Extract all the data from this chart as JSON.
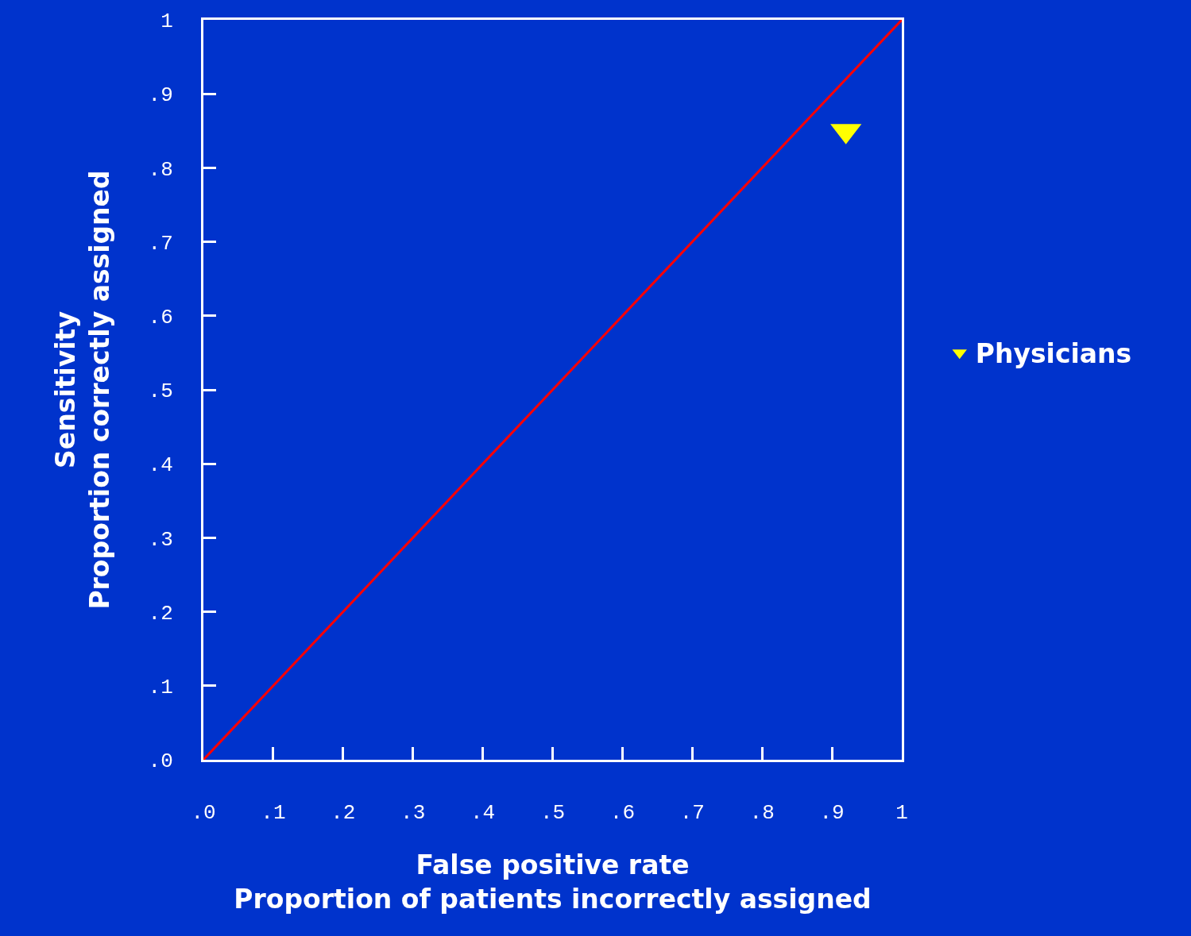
{
  "chart_data": {
    "type": "scatter",
    "xlabel": "False positive rate\nProportion of patients incorrectly assigned",
    "ylabel": "Sensitivity\nProportion correctly assigned",
    "series": [
      {
        "type": "line",
        "color": "#ff0000",
        "x": [
          0,
          1
        ],
        "values": [
          0,
          1
        ],
        "marker": "none"
      },
      {
        "name": "Physicians",
        "color": "#ffff00",
        "x": [
          0.92
        ],
        "values": [
          0.85
        ],
        "marker": "triangle"
      }
    ],
    "xlim": [
      0,
      1
    ],
    "ylim": [
      0,
      1
    ],
    "xticks": [
      {
        "value": 0,
        "label": ".0"
      },
      {
        "value": 0.1,
        "label": ".1"
      },
      {
        "value": 0.2,
        "label": ".2"
      },
      {
        "value": 0.3,
        "label": ".3"
      },
      {
        "value": 0.4,
        "label": ".4"
      },
      {
        "value": 0.5,
        "label": ".5"
      },
      {
        "value": 0.6,
        "label": ".6"
      },
      {
        "value": 0.7,
        "label": ".7"
      },
      {
        "value": 0.8,
        "label": ".8"
      },
      {
        "value": 0.9,
        "label": ".9"
      },
      1
    ],
    "yticks": [
      {
        "value": 0,
        "label": ".0"
      },
      {
        "value": 0.1,
        "label": ".1"
      },
      {
        "value": 0.2,
        "label": ".2"
      },
      {
        "value": 0.3,
        "label": ".3"
      },
      {
        "value": 0.4,
        "label": ".4"
      },
      {
        "value": 0.5,
        "label": ".5"
      },
      {
        "value": 0.6,
        "label": ".6"
      },
      {
        "value": 0.7,
        "label": ".7"
      },
      {
        "value": 0.8,
        "label": ".8"
      },
      {
        "value": 0.9,
        "label": ".9"
      },
      1
    ],
    "grid": false,
    "legend": "right"
  }
}
